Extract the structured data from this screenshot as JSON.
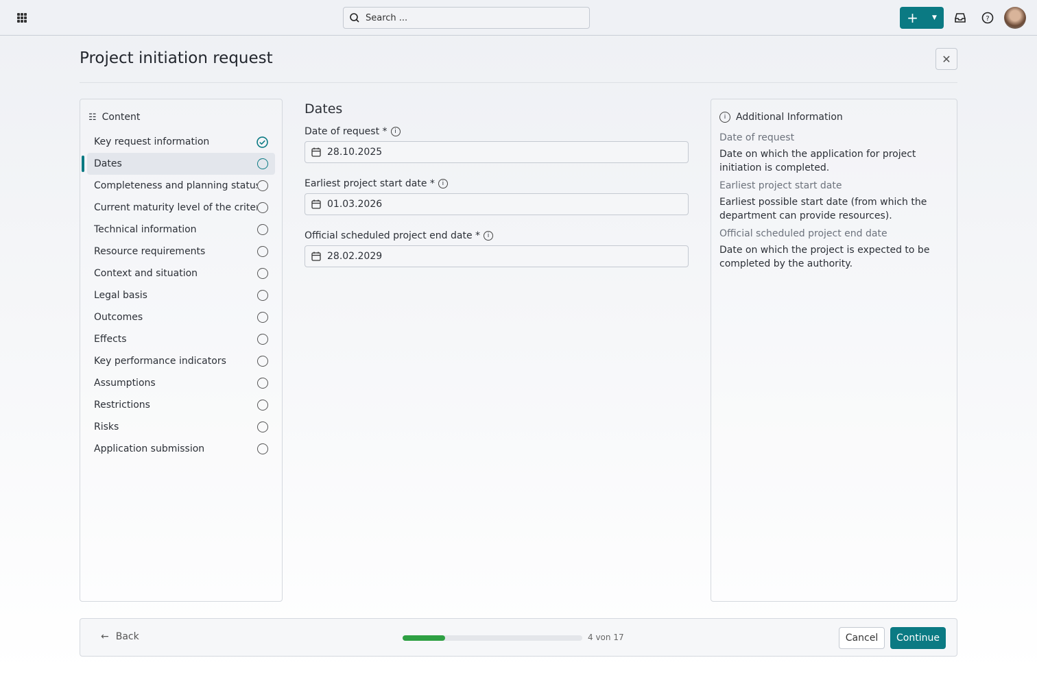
{
  "topbar": {
    "search_placeholder": "Search ...",
    "add_label": "+",
    "icons": [
      "apps-grid-icon",
      "search-icon",
      "plus-icon",
      "chevron-down-icon",
      "inbox-icon",
      "help-icon",
      "avatar"
    ]
  },
  "page": {
    "title": "Project initiation request"
  },
  "content_panel": {
    "title": "Content",
    "items": [
      {
        "label": "Key request information",
        "status": "completed"
      },
      {
        "label": "Dates",
        "status": "active"
      },
      {
        "label": "Completeness and planning status",
        "status": "open"
      },
      {
        "label": "Current maturity level of the criteria",
        "status": "open"
      },
      {
        "label": "Technical information",
        "status": "open"
      },
      {
        "label": "Resource requirements",
        "status": "open"
      },
      {
        "label": "Context and situation",
        "status": "open"
      },
      {
        "label": "Legal basis",
        "status": "open"
      },
      {
        "label": "Outcomes",
        "status": "open"
      },
      {
        "label": "Effects",
        "status": "open"
      },
      {
        "label": "Key performance indicators",
        "status": "open"
      },
      {
        "label": "Assumptions",
        "status": "open"
      },
      {
        "label": "Restrictions",
        "status": "open"
      },
      {
        "label": "Risks",
        "status": "open"
      },
      {
        "label": "Application submission",
        "status": "open"
      }
    ]
  },
  "form": {
    "title": "Dates",
    "fields": [
      {
        "label": "Date of request *",
        "value": "28.10.2025"
      },
      {
        "label": "Earliest project start date *",
        "value": "01.03.2026"
      },
      {
        "label": "Official scheduled project end date *",
        "value": "28.02.2029"
      }
    ]
  },
  "info_panel": {
    "title": "Additional Information",
    "entries": [
      {
        "term": "Date of request",
        "desc": "Date on which the application for project initiation is completed."
      },
      {
        "term": "Earliest project start date",
        "desc": "Earliest possible start date (from which the department can provide resources)."
      },
      {
        "term": "Official scheduled project end date",
        "desc": "Date on which the project is expected to be completed by the authority."
      }
    ]
  },
  "footer": {
    "back_label": "Back",
    "progress_current": 4,
    "progress_total": 17,
    "progress_text": "4 von 17",
    "cancel_label": "Cancel",
    "continue_label": "Continue"
  },
  "colors": {
    "accent": "#0b7a83",
    "progress": "#2ea043"
  }
}
